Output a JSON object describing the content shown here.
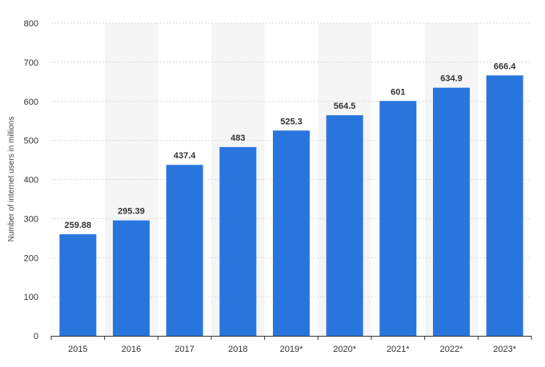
{
  "chart_data": {
    "type": "bar",
    "categories": [
      "2015",
      "2016",
      "2017",
      "2018",
      "2019*",
      "2020*",
      "2021*",
      "2022*",
      "2023*"
    ],
    "values": [
      259.88,
      295.39,
      437.4,
      483,
      525.3,
      564.5,
      601,
      634.9,
      666.4
    ],
    "value_labels": [
      "259.88",
      "295.39",
      "437.4",
      "483",
      "525.3",
      "564.5",
      "601",
      "634.9",
      "666.4"
    ],
    "ylabel": "Number of internet users in millions",
    "xlabel": "",
    "ylim": [
      0,
      800
    ],
    "yticks": [
      0,
      100,
      200,
      300,
      400,
      500,
      600,
      700,
      800
    ],
    "grid": true,
    "alternating_column_bands": true,
    "colors": {
      "bar": "#2876dd",
      "gridline": "#dcdcdc",
      "band": "#f5f5f5",
      "axis": "#333333"
    }
  }
}
